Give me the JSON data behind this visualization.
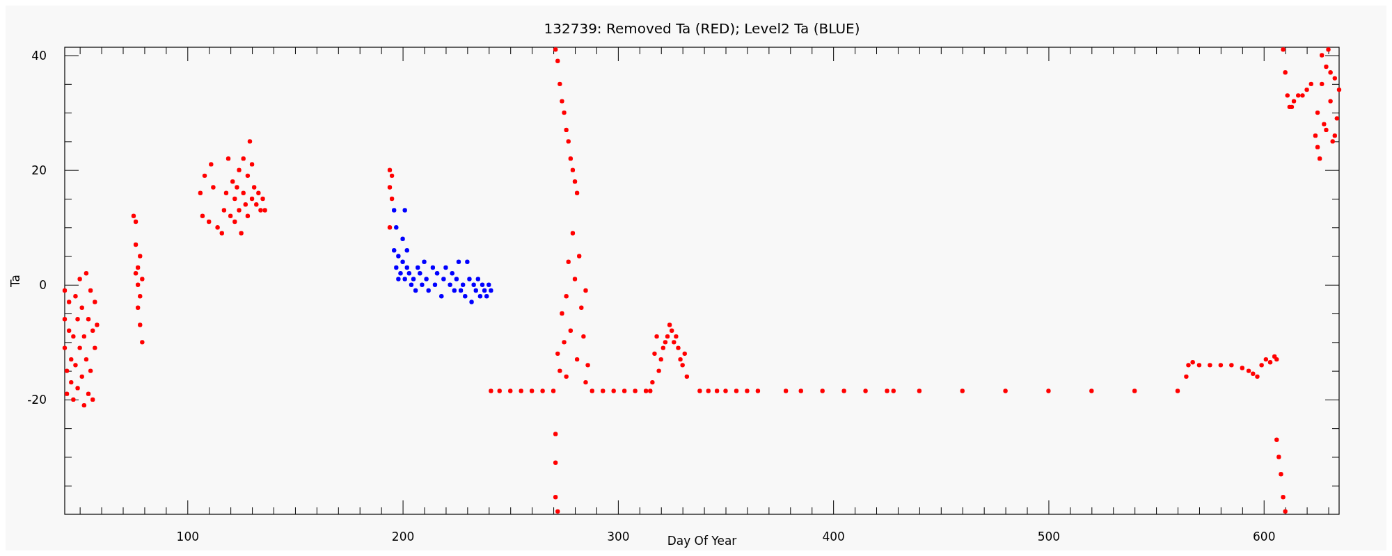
{
  "chart_data": {
    "type": "scatter",
    "title": "132739: Removed Ta (RED); Level2 Ta (BLUE)",
    "xlabel": "Day Of Year",
    "ylabel": "Ta",
    "marker": "circle",
    "xlim": [
      43,
      635
    ],
    "ylim": [
      -40,
      41.4
    ],
    "xticks": [
      {
        "value": 50,
        "label": null
      },
      {
        "value": 60,
        "label": null
      },
      {
        "value": 70,
        "label": null
      },
      {
        "value": 80,
        "label": null
      },
      {
        "value": 90,
        "label": null
      },
      100,
      {
        "value": 110,
        "label": null
      },
      {
        "value": 120,
        "label": null
      },
      {
        "value": 130,
        "label": null
      },
      {
        "value": 140,
        "label": null
      },
      {
        "value": 150,
        "label": null
      },
      {
        "value": 160,
        "label": null
      },
      {
        "value": 170,
        "label": null
      },
      {
        "value": 180,
        "label": null
      },
      {
        "value": 190,
        "label": null
      },
      200,
      {
        "value": 210,
        "label": null
      },
      {
        "value": 220,
        "label": null
      },
      {
        "value": 230,
        "label": null
      },
      {
        "value": 240,
        "label": null
      },
      {
        "value": 250,
        "label": null
      },
      {
        "value": 260,
        "label": null
      },
      {
        "value": 270,
        "label": null
      },
      {
        "value": 280,
        "label": null
      },
      {
        "value": 290,
        "label": null
      },
      300,
      {
        "value": 310,
        "label": null
      },
      {
        "value": 320,
        "label": null
      },
      {
        "value": 330,
        "label": null
      },
      {
        "value": 340,
        "label": null
      },
      {
        "value": 350,
        "label": null
      },
      {
        "value": 360,
        "label": null
      },
      {
        "value": 370,
        "label": null
      },
      {
        "value": 380,
        "label": null
      },
      {
        "value": 390,
        "label": null
      },
      400,
      {
        "value": 410,
        "label": null
      },
      {
        "value": 420,
        "label": null
      },
      {
        "value": 430,
        "label": null
      },
      {
        "value": 440,
        "label": null
      },
      {
        "value": 450,
        "label": null
      },
      {
        "value": 460,
        "label": null
      },
      {
        "value": 470,
        "label": null
      },
      {
        "value": 480,
        "label": null
      },
      {
        "value": 490,
        "label": null
      },
      500,
      {
        "value": 510,
        "label": null
      },
      {
        "value": 520,
        "label": null
      },
      {
        "value": 530,
        "label": null
      },
      {
        "value": 540,
        "label": null
      },
      {
        "value": 550,
        "label": null
      },
      {
        "value": 560,
        "label": null
      },
      {
        "value": 570,
        "label": null
      },
      {
        "value": 580,
        "label": null
      },
      {
        "value": 590,
        "label": null
      },
      600,
      {
        "value": 610,
        "label": null
      },
      {
        "value": 620,
        "label": null
      },
      {
        "value": 630,
        "label": null
      }
    ],
    "yticks": [
      {
        "value": -35,
        "label": null
      },
      {
        "value": -30,
        "label": null
      },
      {
        "value": -25,
        "label": null
      },
      -20,
      {
        "value": -15,
        "label": null
      },
      {
        "value": -10,
        "label": null
      },
      {
        "value": -5,
        "label": null
      },
      0,
      {
        "value": 5,
        "label": null
      },
      {
        "value": 10,
        "label": null
      },
      {
        "value": 15,
        "label": null
      },
      20,
      {
        "value": 25,
        "label": null
      },
      {
        "value": 30,
        "label": null
      },
      {
        "value": 35,
        "label": null
      },
      40
    ],
    "series": [
      {
        "color": "#ff0000",
        "x": [
          43,
          43,
          43,
          44,
          44,
          45,
          45,
          46,
          46,
          47,
          47,
          48,
          48,
          49,
          49,
          50,
          50,
          51,
          51,
          52,
          52,
          53,
          53,
          54,
          54,
          55,
          55,
          56,
          56,
          57,
          57,
          58,
          75,
          76,
          76,
          76,
          77,
          77,
          77,
          78,
          78,
          78,
          79,
          79,
          106,
          107,
          108,
          110,
          111,
          112,
          114,
          116,
          117,
          118,
          119,
          120,
          121,
          122,
          122,
          123,
          124,
          124,
          125,
          126,
          126,
          127,
          128,
          128,
          129,
          130,
          130,
          131,
          132,
          133,
          134,
          135,
          136,
          194,
          194,
          195,
          195,
          194,
          241,
          245,
          250,
          255,
          260,
          265,
          270,
          271,
          271,
          271,
          272,
          271,
          272,
          273,
          274,
          275,
          276,
          277,
          278,
          279,
          280,
          281,
          272,
          273,
          274,
          275,
          276,
          277,
          278,
          279,
          280,
          281,
          282,
          283,
          284,
          285,
          286,
          276,
          285,
          288,
          293,
          298,
          303,
          308,
          313,
          315,
          316,
          317,
          318,
          319,
          320,
          321,
          322,
          323,
          324,
          325,
          326,
          327,
          328,
          329,
          330,
          331,
          332,
          338,
          342,
          346,
          350,
          355,
          360,
          365,
          378,
          385,
          395,
          405,
          415,
          425,
          428,
          440,
          460,
          480,
          500,
          520,
          540,
          560,
          564,
          565,
          567,
          570,
          575,
          580,
          585,
          590,
          593,
          595,
          597,
          599,
          601,
          603,
          605,
          606,
          606,
          607,
          608,
          609,
          610,
          609,
          610,
          611,
          612,
          613,
          614,
          616,
          618,
          620,
          622,
          624,
          625,
          626,
          627,
          628,
          629,
          630,
          631,
          632,
          633,
          634,
          635,
          625,
          627,
          629,
          631,
          633
        ],
        "values": [
          -1,
          -6,
          -11,
          -15,
          -19,
          -8,
          -3,
          -13,
          -17,
          -20,
          -9,
          -2,
          -14,
          -6,
          -18,
          -11,
          1,
          -16,
          -4,
          -21,
          -9,
          2,
          -13,
          -19,
          -6,
          -1,
          -15,
          -8,
          -20,
          -3,
          -11,
          -7,
          12,
          11,
          7,
          2,
          3,
          0,
          -4,
          5,
          -2,
          -7,
          1,
          -10,
          16,
          12,
          19,
          11,
          21,
          17,
          10,
          9,
          13,
          16,
          22,
          12,
          18,
          15,
          11,
          17,
          20,
          13,
          9,
          16,
          22,
          14,
          19,
          12,
          25,
          21,
          15,
          17,
          14,
          16,
          13,
          15,
          13,
          20,
          17,
          15,
          19,
          10,
          -18.5,
          -18.5,
          -18.5,
          -18.5,
          -18.5,
          -18.5,
          -18.5,
          -26,
          -31,
          -37,
          -39.5,
          41,
          39,
          35,
          32,
          30,
          27,
          25,
          22,
          20,
          18,
          16,
          -12,
          -15,
          -5,
          -10,
          -2,
          4,
          -8,
          9,
          1,
          -13,
          5,
          -4,
          -9,
          -1,
          -14,
          -16,
          -17,
          -18.5,
          -18.5,
          -18.5,
          -18.5,
          -18.5,
          -18.5,
          -18.5,
          -17,
          -12,
          -9,
          -15,
          -13,
          -11,
          -10,
          -9,
          -7,
          -8,
          -10,
          -9,
          -11,
          -13,
          -14,
          -12,
          -16,
          -18.5,
          -18.5,
          -18.5,
          -18.5,
          -18.5,
          -18.5,
          -18.5,
          -18.5,
          -18.5,
          -18.5,
          -18.5,
          -18.5,
          -18.5,
          -18.5,
          -18.5,
          -18.5,
          -18.5,
          -18.5,
          -18.5,
          -18.5,
          -18.5,
          -16,
          -14,
          -13.5,
          -14,
          -14,
          -14,
          -14,
          -14.5,
          -15,
          -15.5,
          -16,
          -14,
          -13,
          -13.5,
          -12.5,
          -13,
          -27,
          -30,
          -33,
          -37,
          -39.5,
          41,
          37,
          33,
          31,
          31,
          32,
          33,
          33,
          34,
          35,
          26,
          30,
          22,
          35,
          28,
          38,
          41,
          32,
          25,
          36,
          29,
          34,
          24,
          40,
          27,
          37,
          26
        ]
      },
      {
        "color": "#0000ff",
        "x": [
          196,
          196,
          197,
          197,
          198,
          198,
          199,
          200,
          200,
          201,
          201,
          202,
          202,
          203,
          204,
          205,
          206,
          207,
          208,
          209,
          210,
          211,
          212,
          214,
          215,
          216,
          218,
          219,
          220,
          222,
          223,
          224,
          225,
          226,
          227,
          228,
          229,
          230,
          231,
          232,
          233,
          234,
          235,
          236,
          237,
          238,
          239,
          240,
          241
        ],
        "values": [
          13,
          6,
          3,
          10,
          5,
          1,
          2,
          8,
          4,
          13,
          1,
          6,
          3,
          2,
          0,
          1,
          -1,
          3,
          2,
          0,
          4,
          1,
          -1,
          3,
          0,
          2,
          -2,
          1,
          3,
          0,
          2,
          -1,
          1,
          4,
          -1,
          0,
          -2,
          4,
          1,
          -3,
          0,
          -1,
          1,
          -2,
          0,
          -1,
          -2,
          0,
          -1
        ]
      }
    ]
  }
}
